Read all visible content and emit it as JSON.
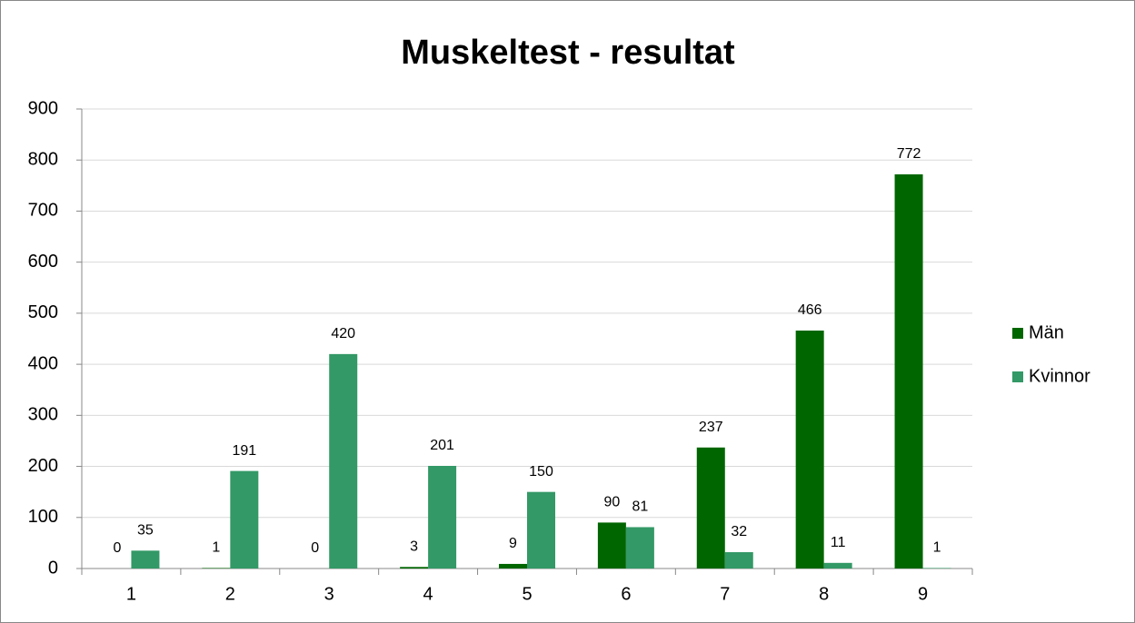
{
  "chart_data": {
    "type": "bar",
    "title": "Muskeltest - resultat",
    "categories": [
      "1",
      "2",
      "3",
      "4",
      "5",
      "6",
      "7",
      "8",
      "9"
    ],
    "series": [
      {
        "name": "Män",
        "color": "#006600",
        "values": [
          0,
          1,
          0,
          3,
          9,
          90,
          237,
          466,
          772
        ]
      },
      {
        "name": "Kvinnor",
        "color": "#339966",
        "values": [
          35,
          191,
          420,
          201,
          150,
          81,
          32,
          11,
          1
        ]
      }
    ],
    "ylim": [
      0,
      900
    ],
    "yticks": [
      0,
      100,
      200,
      300,
      400,
      500,
      600,
      700,
      800,
      900
    ],
    "grid": true,
    "legend": "right"
  }
}
